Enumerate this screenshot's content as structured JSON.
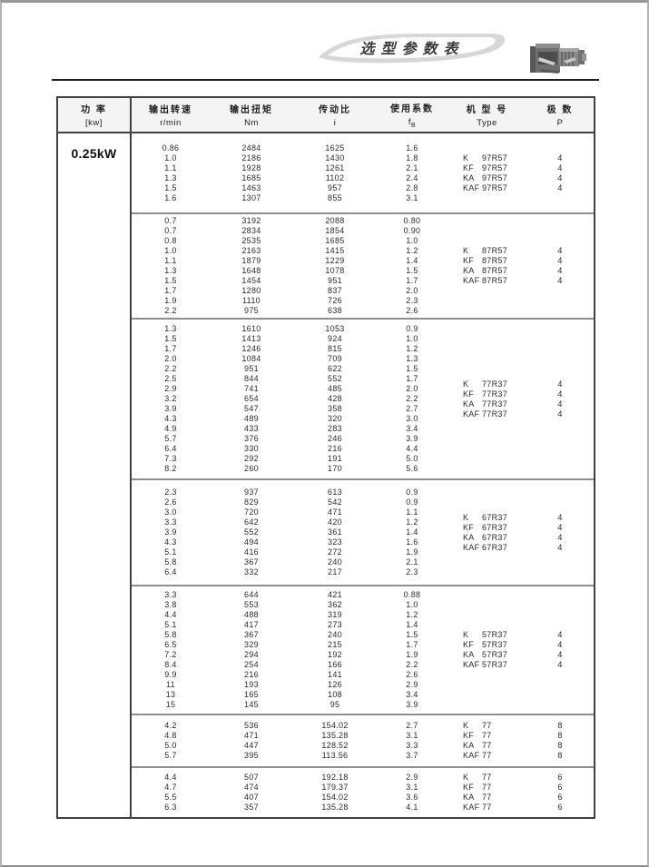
{
  "header": {
    "title": "选型参数表",
    "motor_image_label": "gear-motor-photo"
  },
  "table": {
    "power_rating": "0.25kW",
    "columns": [
      {
        "key": "power",
        "zh": "功 率",
        "en": "[kw]"
      },
      {
        "key": "speed",
        "zh": "输出转速",
        "en": "r/min"
      },
      {
        "key": "torque",
        "zh": "输出扭矩",
        "en": "Nm"
      },
      {
        "key": "ratio",
        "zh": "传动比",
        "en": "i"
      },
      {
        "key": "service-factor",
        "zh": "使用系数",
        "en": "f",
        "sub": "B"
      },
      {
        "key": "type",
        "zh": "机 型 号",
        "en": "Type"
      },
      {
        "key": "poles",
        "zh": "极 数",
        "en": "P"
      }
    ],
    "sections": [
      {
        "rows": [
          [
            "0.86",
            "2484",
            "1625",
            "1.6"
          ],
          [
            "1.0",
            "2186",
            "1430",
            "1.8"
          ],
          [
            "1.1",
            "1928",
            "1261",
            "2.1"
          ],
          [
            "1.3",
            "1685",
            "1102",
            "2.4"
          ],
          [
            "1.5",
            "1463",
            "957",
            "2.8"
          ],
          [
            "1.6",
            "1307",
            "855",
            "3.1"
          ]
        ],
        "models": [
          {
            "prefix": "K",
            "series": "97R57",
            "poles": "4"
          },
          {
            "prefix": "KF",
            "series": "97R57",
            "poles": "4"
          },
          {
            "prefix": "KA",
            "series": "97R57",
            "poles": "4"
          },
          {
            "prefix": "KAF",
            "series": "97R57",
            "poles": "4"
          }
        ]
      },
      {
        "rows": [
          [
            "0.7",
            "3192",
            "2088",
            "0.80"
          ],
          [
            "0.7",
            "2834",
            "1854",
            "0.90"
          ],
          [
            "0.8",
            "2535",
            "1685",
            "1.0"
          ],
          [
            "1.0",
            "2163",
            "1415",
            "1.2"
          ],
          [
            "1.1",
            "1879",
            "1229",
            "1.4"
          ],
          [
            "1.3",
            "1648",
            "1078",
            "1.5"
          ],
          [
            "1.5",
            "1454",
            "951",
            "1.7"
          ],
          [
            "1.7",
            "1280",
            "837",
            "2.0"
          ],
          [
            "1.9",
            "1110",
            "726",
            "2.3"
          ],
          [
            "2.2",
            "975",
            "638",
            "2.6"
          ]
        ],
        "models": [
          {
            "prefix": "K",
            "series": "87R57",
            "poles": "4"
          },
          {
            "prefix": "KF",
            "series": "87R57",
            "poles": "4"
          },
          {
            "prefix": "KA",
            "series": "87R57",
            "poles": "4"
          },
          {
            "prefix": "KAF",
            "series": "87R57",
            "poles": "4"
          }
        ]
      },
      {
        "rows": [
          [
            "1.3",
            "1610",
            "1053",
            "0.9"
          ],
          [
            "1.5",
            "1413",
            "924",
            "1.0"
          ],
          [
            "1.7",
            "1246",
            "815",
            "1.2"
          ],
          [
            "2.0",
            "1084",
            "709",
            "1.3"
          ],
          [
            "2.2",
            "951",
            "622",
            "1.5"
          ],
          [
            "2.5",
            "844",
            "552",
            "1.7"
          ],
          [
            "2.9",
            "741",
            "485",
            "2.0"
          ],
          [
            "3.2",
            "654",
            "428",
            "2.2"
          ],
          [
            "3.9",
            "547",
            "358",
            "2.7"
          ],
          [
            "4.3",
            "489",
            "320",
            "3.0"
          ],
          [
            "4.9",
            "433",
            "283",
            "3.4"
          ],
          [
            "5.7",
            "376",
            "246",
            "3.9"
          ],
          [
            "6.4",
            "330",
            "216",
            "4.4"
          ],
          [
            "7.3",
            "292",
            "191",
            "5.0"
          ],
          [
            "8.2",
            "260",
            "170",
            "5.6"
          ]
        ],
        "models": [
          {
            "prefix": "K",
            "series": "77R37",
            "poles": "4"
          },
          {
            "prefix": "KF",
            "series": "77R37",
            "poles": "4"
          },
          {
            "prefix": "KA",
            "series": "77R37",
            "poles": "4"
          },
          {
            "prefix": "KAF",
            "series": "77R37",
            "poles": "4"
          }
        ]
      },
      {
        "rows": [
          [
            "2.3",
            "937",
            "613",
            "0.9"
          ],
          [
            "2.6",
            "829",
            "542",
            "0.9"
          ],
          [
            "3.0",
            "720",
            "471",
            "1.1"
          ],
          [
            "3.3",
            "642",
            "420",
            "1.2"
          ],
          [
            "3.9",
            "552",
            "361",
            "1.4"
          ],
          [
            "4.3",
            "494",
            "323",
            "1.6"
          ],
          [
            "5.1",
            "416",
            "272",
            "1.9"
          ],
          [
            "5.8",
            "367",
            "240",
            "2.1"
          ],
          [
            "6.4",
            "332",
            "217",
            "2.3"
          ]
        ],
        "models": [
          {
            "prefix": "K",
            "series": "67R37",
            "poles": "4"
          },
          {
            "prefix": "KF",
            "series": "67R37",
            "poles": "4"
          },
          {
            "prefix": "KA",
            "series": "67R37",
            "poles": "4"
          },
          {
            "prefix": "KAF",
            "series": "67R37",
            "poles": "4"
          }
        ]
      },
      {
        "rows": [
          [
            "3.3",
            "644",
            "421",
            "0.88"
          ],
          [
            "3.8",
            "553",
            "362",
            "1.0"
          ],
          [
            "4.4",
            "488",
            "319",
            "1.2"
          ],
          [
            "5.1",
            "417",
            "273",
            "1.4"
          ],
          [
            "5.8",
            "367",
            "240",
            "1.5"
          ],
          [
            "6.5",
            "329",
            "215",
            "1.7"
          ],
          [
            "7.2",
            "294",
            "192",
            "1.9"
          ],
          [
            "8.4",
            "254",
            "166",
            "2.2"
          ],
          [
            "9.9",
            "216",
            "141",
            "2.6"
          ],
          [
            "11",
            "193",
            "126",
            "2.9"
          ],
          [
            "13",
            "165",
            "108",
            "3.4"
          ],
          [
            "15",
            "145",
            "95",
            "3.9"
          ]
        ],
        "models": [
          {
            "prefix": "K",
            "series": "57R37",
            "poles": "4"
          },
          {
            "prefix": "KF",
            "series": "57R37",
            "poles": "4"
          },
          {
            "prefix": "KA",
            "series": "57R37",
            "poles": "4"
          },
          {
            "prefix": "KAF",
            "series": "57R37",
            "poles": "4"
          }
        ]
      },
      {
        "rows": [
          [
            "4.2",
            "536",
            "154.02",
            "2.7"
          ],
          [
            "4.8",
            "471",
            "135.28",
            "3.1"
          ],
          [
            "5.0",
            "447",
            "128.52",
            "3.3"
          ],
          [
            "5.7",
            "395",
            "113.56",
            "3.7"
          ]
        ],
        "models": [
          {
            "prefix": "K",
            "series": "77",
            "poles": "8"
          },
          {
            "prefix": "KF",
            "series": "77",
            "poles": "8"
          },
          {
            "prefix": "KA",
            "series": "77",
            "poles": "8"
          },
          {
            "prefix": "KAF",
            "series": "77",
            "poles": "8"
          }
        ]
      },
      {
        "rows": [
          [
            "4.4",
            "507",
            "192.18",
            "2.9"
          ],
          [
            "4.7",
            "474",
            "179.37",
            "3.1"
          ],
          [
            "5.5",
            "407",
            "154.02",
            "3.6"
          ],
          [
            "6.3",
            "357",
            "135.28",
            "4.1"
          ]
        ],
        "models": [
          {
            "prefix": "K",
            "series": "77",
            "poles": "6"
          },
          {
            "prefix": "KF",
            "series": "77",
            "poles": "6"
          },
          {
            "prefix": "KA",
            "series": "77",
            "poles": "6"
          },
          {
            "prefix": "KAF",
            "series": "77",
            "poles": "6"
          }
        ]
      }
    ]
  }
}
